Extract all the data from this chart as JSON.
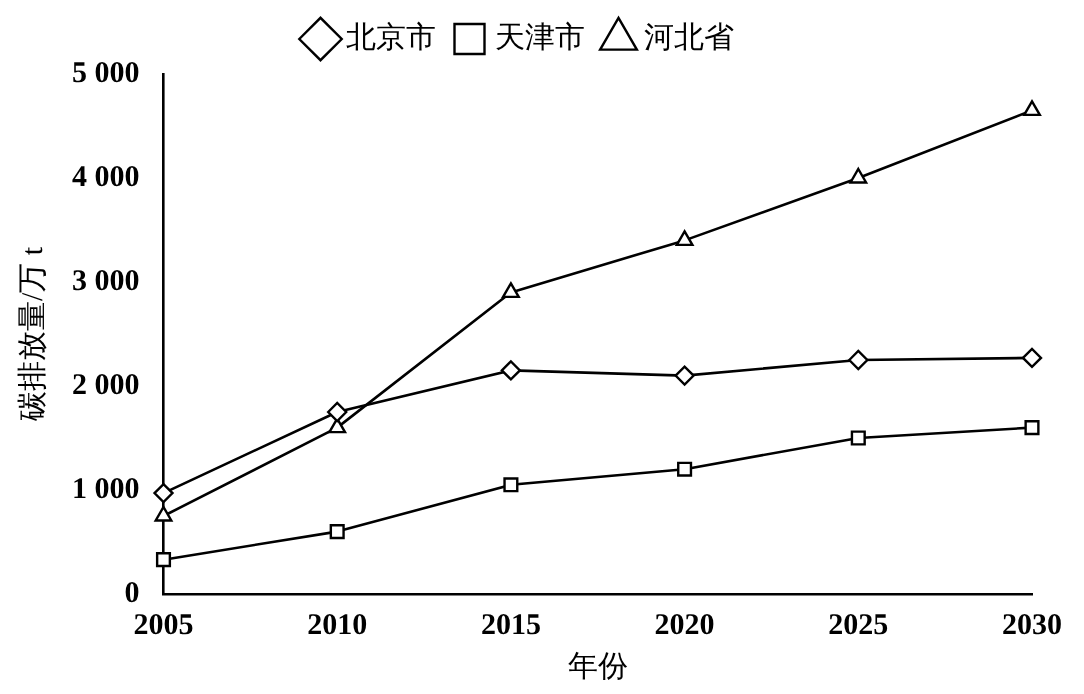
{
  "chart_data": {
    "type": "line",
    "xlabel": "年份",
    "ylabel": "碳排放量/万 t",
    "x": [
      2005,
      2010,
      2015,
      2020,
      2025,
      2030
    ],
    "series": [
      {
        "name": "北京市",
        "color": "#000000",
        "marker": "diamond",
        "values": [
          970,
          1750,
          2150,
          2100,
          2250,
          2270
        ]
      },
      {
        "name": "天津市",
        "color": "#000000",
        "marker": "square",
        "values": [
          330,
          600,
          1050,
          1200,
          1500,
          1600
        ]
      },
      {
        "name": "河北省",
        "color": "#000000",
        "marker": "triangle",
        "values": [
          750,
          1600,
          2900,
          3400,
          4000,
          4650
        ]
      }
    ],
    "xlim": [
      2005,
      2030
    ],
    "xticks": [
      2005,
      2010,
      2015,
      2020,
      2025,
      2030
    ],
    "ylim": [
      0,
      5000
    ],
    "yticks": [
      0,
      {
        "value": 1000,
        "label": "1 000"
      },
      {
        "value": 2000,
        "label": "2 000"
      },
      {
        "value": 3000,
        "label": "3 000"
      },
      {
        "value": 4000,
        "label": "4 000"
      },
      {
        "value": 5000,
        "label": "5 000"
      }
    ],
    "grid": false,
    "legend": "top",
    "line_style": "solid"
  }
}
